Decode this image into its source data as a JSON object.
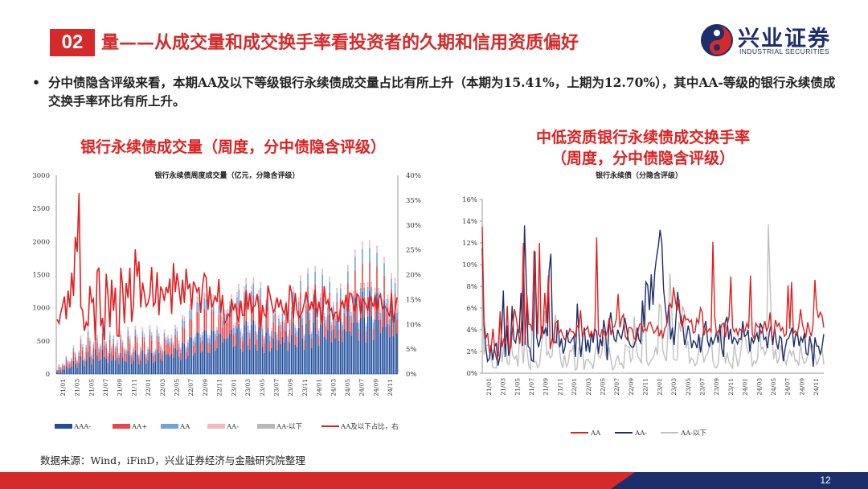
{
  "header": {
    "section_number": "02",
    "title": "量——从成交量和成交换手率看投资者的久期和信用资质偏好",
    "logo_cn": "兴业证券",
    "logo_en": "INDUSTRIAL SECURITIES",
    "brand_color": "#d42a2a",
    "logo_color": "#1c2e6c"
  },
  "bullet": {
    "marker": "•",
    "text": "分中债隐含评级来看，本期AA及以下等级银行永续债成交量占比有所上升（本期为15.41%，上期为12.70%），其中AA-等级的银行永续债成交换手率环比有所上升。"
  },
  "left_heading": "银行永续债成交量（周度，分中债隐含评级）",
  "right_heading_line1": "中低资质银行永续债成交换手率",
  "right_heading_line2": "（周度，分中债隐含评级）",
  "source": "数据来源：Wind，iFinD，兴业证券经济与金融研究院整理",
  "page_number": "12",
  "chart_data": [
    {
      "type": "bar",
      "stacked": true,
      "title": "银行永续债周度成交量（亿元，分隐含评级）",
      "x_ticks": [
        "21/01",
        "21/03",
        "21/05",
        "21/07",
        "21/09",
        "21/11",
        "22/01",
        "22/03",
        "22/05",
        "22/07",
        "22/09",
        "22/11",
        "23/01",
        "23/03",
        "23/05",
        "23/07",
        "23/09",
        "23/11",
        "24/01",
        "24/03",
        "24/05",
        "24/07",
        "24/09",
        "24/11"
      ],
      "ylim_left": [
        0,
        3000
      ],
      "yticks_left": [
        0,
        500,
        1000,
        1500,
        2000,
        2500,
        3000
      ],
      "ylim_right": [
        0,
        40
      ],
      "yticks_right": [
        "0%",
        "5%",
        "10%",
        "15%",
        "20%",
        "25%",
        "30%",
        "35%",
        "40%"
      ],
      "legend": [
        "AAA-",
        "AA+",
        "AA",
        "AA-",
        "AA-以下",
        "AA及以下占比，右"
      ],
      "series": [
        {
          "name": "AAA-",
          "color": "#1f4e9c",
          "stack_values_approx": {
            "21/01": 50,
            "21/07": 300,
            "22/01": 250,
            "22/07": 400,
            "23/01": 650,
            "23/07": 550,
            "24/01": 700,
            "24/07": 850,
            "24/11": 900
          }
        },
        {
          "name": "AA+",
          "color": "#e8474a",
          "stack_values_approx": {
            "21/01": 40,
            "21/07": 200,
            "22/01": 150,
            "22/07": 200,
            "23/01": 300,
            "23/07": 250,
            "24/01": 250,
            "24/07": 300,
            "24/11": 300
          }
        },
        {
          "name": "AA",
          "color": "#6ea2e0",
          "stack_values_approx": {
            "21/01": 20,
            "21/07": 80,
            "22/01": 60,
            "22/07": 100,
            "23/01": 150,
            "23/07": 120,
            "24/01": 130,
            "24/07": 150,
            "24/11": 150
          }
        },
        {
          "name": "AA-",
          "color": "#f5b8c0",
          "stack_values_approx": {
            "21/01": 10,
            "21/07": 40,
            "22/01": 30,
            "22/07": 50,
            "23/01": 60,
            "23/07": 50,
            "24/01": 50,
            "24/07": 60,
            "24/11": 60
          }
        },
        {
          "name": "AA-以下",
          "color": "#b8b8b8",
          "stack_values_approx": {
            "21/01": 5,
            "21/07": 10,
            "22/01": 10,
            "22/07": 10,
            "23/01": 15,
            "23/07": 10,
            "24/01": 10,
            "24/07": 15,
            "24/11": 15
          }
        },
        {
          "name": "AA及以下占比，右",
          "color": "#e02020",
          "type": "line",
          "axis": "right",
          "values_pct": [
            11.0,
            10.2,
            12.4,
            13.8,
            15.6,
            11.0,
            16.8,
            13.4,
            20.4,
            15.7,
            27.6,
            24.6,
            36.4,
            13.5,
            12.8,
            8.7,
            10.4,
            9.6,
            17.7,
            14.5,
            15.1,
            6.7,
            20.7,
            21.4,
            9.6,
            11.3,
            6.8,
            20.2,
            15.9,
            9.4,
            19.0,
            12.7,
            17.4,
            7.7,
            7.6,
            21.4,
            17.7,
            10.2,
            18.3,
            15.3,
            21.4,
            10.5,
            13.9,
            25.1,
            19.6,
            22.7,
            13.4,
            18.4,
            16.2,
            13.6,
            14.3,
            15.9,
            21.5,
            13.7,
            14.4,
            20.5,
            11.8,
            17.6,
            16.7,
            14.7,
            17.5,
            16.3,
            19.2,
            12.1,
            22.3,
            16.5,
            20.3,
            17.4,
            14.0,
            19.0,
            14.3,
            21.2,
            17.1,
            18.2,
            12.9,
            18.6,
            17.8,
            16.5,
            17.5,
            12.3,
            17.7,
            20.2,
            19.4,
            12.9,
            17.6,
            13.4,
            14.3,
            15.6,
            14.5,
            19.1,
            12.2,
            15.9,
            10.2,
            10.7,
            12.1,
            11.6,
            15.1,
            12.8,
            14.2,
            11.8,
            10.5,
            14.8,
            11.8,
            11.8,
            16.9,
            12.9,
            16.3,
            12.2,
            13.7,
            13.7,
            16.1,
            13.3,
            8.8,
            13.9,
            12.0,
            11.5,
            17.8,
            16.2,
            14.3,
            12.4,
            13.3,
            15.4,
            13.4,
            15.0,
            13.0,
            12.1,
            14.3,
            10.2,
            17.9,
            16.4,
            11.1,
            16.3,
            12.8,
            11.3,
            11.9,
            12.6,
            14.3,
            16.5,
            14.6,
            12.8,
            14.6,
            13.0,
            17.0,
            11.4,
            14.6,
            12.3,
            10.2,
            17.7,
            14.0,
            14.9,
            12.7,
            13.2,
            10.8,
            12.4,
            12.4,
            10.4,
            13.6,
            14.6,
            13.1,
            16.0,
            12.3,
            16.3,
            16.1,
            13.9,
            12.5,
            16.1,
            15.7,
            12.1,
            15.3,
            14.6,
            14.0,
            12.7,
            15.9,
            14.6,
            13.5,
            15.9,
            12.8,
            15.2,
            16.0,
            13.0,
            13.8,
            13.3,
            12.5,
            11.6,
            16.3,
            10.2,
            12.7,
            15.4
          ]
        }
      ]
    },
    {
      "type": "line",
      "title": "银行永续债（分隐含评级）",
      "x_ticks": [
        "21/01",
        "21/03",
        "21/05",
        "21/07",
        "21/09",
        "21/11",
        "22/01",
        "22/03",
        "22/05",
        "22/07",
        "22/09",
        "22/11",
        "23/01",
        "23/03",
        "23/05",
        "23/07",
        "23/09",
        "23/11",
        "24/01",
        "24/03",
        "24/05",
        "24/07",
        "24/09",
        "24/11"
      ],
      "ylim": [
        0,
        16
      ],
      "yticks": [
        "0%",
        "2%",
        "4%",
        "6%",
        "8%",
        "10%",
        "12%",
        "14%",
        "16%"
      ],
      "legend": [
        "AA",
        "AA-",
        "AA-以下"
      ],
      "series": [
        {
          "name": "AA",
          "color": "#e02020",
          "values": [
            13.5,
            4.8,
            3.2,
            3.7,
            2.0,
            2.3,
            4.1,
            2.1,
            1.3,
            1.6,
            5.7,
            2.4,
            3.1,
            2.7,
            6.2,
            2.0,
            2.4,
            4.2,
            5.9,
            5.1,
            4.0,
            2.7,
            4.7,
            12.0,
            2.6,
            7.2,
            4.5,
            4.5,
            3.9,
            11.3,
            7.6,
            3.6,
            12.0,
            3.2,
            4.3,
            7.4,
            4.6,
            9.0,
            2.2,
            3.1,
            2.8,
            4.6,
            4.8,
            3.7,
            4.0,
            3.5,
            3.1,
            3.3,
            3.5,
            4.1,
            3.8,
            3.8,
            3.4,
            4.4,
            4.1,
            5.8,
            3.3,
            3.9,
            4.0,
            4.3,
            3.4,
            3.8,
            3.4,
            4.2,
            12.5,
            3.6,
            3.3,
            4.0,
            3.9,
            3.3,
            3.9,
            5.1,
            3.5,
            4.2,
            4.3,
            5.0,
            7.3,
            4.2,
            5.1,
            5.4,
            3.4,
            3.1,
            4.2,
            4.2,
            4.0,
            3.2,
            3.0,
            3.8,
            4.5,
            4.6,
            3.8,
            4.1,
            3.9,
            4.6,
            4.7,
            4.2,
            3.7,
            3.9,
            4.3,
            3.4,
            4.0,
            3.2,
            4.1,
            4.4,
            5.6,
            6.4,
            6.0,
            7.9,
            6.7,
            5.8,
            6.8,
            4.6,
            4.3,
            5.4,
            4.9,
            5.0,
            4.7,
            4.9,
            3.7,
            3.8,
            5.0,
            4.6,
            6.0,
            5.6,
            3.5,
            4.2,
            3.8,
            4.1,
            3.8,
            12.1,
            5.2,
            3.6,
            3.9,
            4.0,
            4.5,
            4.6,
            3.3,
            4.4,
            5.2,
            8.9,
            4.2,
            3.8,
            4.1,
            3.5,
            4.1,
            3.9,
            3.8,
            3.9,
            4.6,
            4.1,
            9.0,
            3.6,
            3.2,
            4.6,
            4.3,
            4.2,
            3.7,
            4.1,
            4.8,
            3.9,
            4.2,
            5.6,
            3.2,
            3.5,
            4.9,
            4.3,
            4.6,
            3.9,
            4.2,
            3.4,
            3.6,
            8.1,
            4.1,
            8.4,
            3.7,
            3.9,
            3.5,
            4.3,
            5.9,
            4.5,
            3.9,
            3.3,
            4.7,
            3.9,
            3.4,
            4.4,
            8.6,
            6.0,
            5.1,
            5.6,
            5.3,
            4.2
          ]
        },
        {
          "name": "AA-",
          "color": "#1c2e6c",
          "values": [
            11.5,
            4.5,
            2.4,
            1.1,
            1.3,
            2.6,
            1.2,
            2.4,
            2.8,
            0.7,
            1.5,
            3.8,
            7.6,
            1.5,
            4.4,
            1.6,
            2.4,
            6.2,
            3.1,
            2.8,
            4.0,
            3.8,
            7.4,
            2.5,
            13.6,
            8.5,
            2.5,
            2.3,
            1.2,
            1.1,
            11.2,
            3.3,
            2.4,
            3.1,
            4.3,
            3.6,
            4.2,
            3.4,
            9.4,
            11.0,
            3.0,
            2.9,
            2.8,
            4.9,
            2.4,
            3.2,
            1.8,
            2.4,
            4.0,
            2.9,
            2.8,
            3.1,
            3.4,
            1.5,
            6.4,
            3.5,
            1.5,
            3.2,
            4.2,
            2.0,
            3.1,
            1.9,
            3.9,
            2.8,
            4.1,
            3.8,
            1.8,
            3.2,
            2.5,
            4.9,
            3.8,
            1.2,
            4.4,
            5.6,
            4.2,
            3.1,
            2.9,
            4.0,
            3.5,
            3.2,
            4.0,
            5.1,
            4.2,
            3.1,
            2.6,
            2.4,
            2.4,
            3.0,
            4.2,
            3.1,
            2.8,
            6.7,
            4.2,
            8.4,
            8.1,
            5.8,
            9.1,
            6.3,
            9.3,
            10.7,
            11.7,
            13.2,
            12.0,
            7.8,
            6.1,
            4.6,
            6.3,
            3.1,
            4.2,
            2.6,
            5.0,
            7.5,
            5.7,
            5.1,
            4.3,
            2.6,
            3.3,
            4.4,
            3.6,
            2.3,
            3.0,
            2.8,
            2.3,
            3.6,
            1.9,
            3.0,
            4.2,
            4.8,
            3.0,
            2.4,
            3.3,
            2.7,
            3.1,
            3.8,
            2.8,
            4.5,
            2.3,
            1.5,
            4.7,
            5.2,
            3.1,
            4.1,
            2.7,
            3.3,
            3.1,
            2.7,
            3.2,
            3.1,
            4.8,
            3.4,
            3.5,
            4.0,
            2.0,
            3.3,
            2.8,
            3.2,
            3.7,
            2.9,
            4.6,
            4.2,
            3.1,
            3.3,
            2.3,
            3.7,
            4.4,
            2.6,
            4.2,
            2.9,
            2.2,
            3.4,
            3.2,
            1.1,
            2.2,
            3.1,
            3.2,
            3.7,
            4.2,
            2.4,
            3.6,
            3.8,
            2.5,
            3.3,
            2.9,
            3.7,
            1.8,
            1.7,
            3.4,
            2.6,
            0.6,
            3.3,
            2.5,
            2.5,
            1.7,
            2.4,
            3.6
          ]
        },
        {
          "name": "AA-以下",
          "color": "#c0c0c0",
          "values": [
            11.5,
            1.7,
            2.5,
            2.6,
            2.6,
            1.5,
            0.5,
            0.5,
            0.5,
            3.5,
            5.5,
            1.0,
            2.4,
            3.6,
            0.9,
            0.8,
            3.2,
            1.7,
            1.3,
            1.6,
            0.6,
            3.8,
            2.8,
            0.9,
            3.9,
            2.2,
            0.7,
            0.3,
            5.7,
            1.0,
            1.1,
            0.5,
            0.8,
            2.3,
            3.6,
            5.7,
            1.6,
            2.0,
            1.4,
            1.6,
            3.7,
            5.4,
            2.8,
            2.5,
            1.1,
            0.5,
            1.7,
            0.6,
            0.9,
            2.1,
            2.0,
            2.6,
            0.3,
            0.4,
            2.4,
            2.0,
            2.4,
            0.3,
            1.2,
            1.3,
            1.0,
            0.9,
            0.4,
            1.7,
            2.7,
            1.6,
            1.4,
            2.1,
            3.3,
            1.7,
            1.2,
            2.4,
            1.2,
            0.3,
            0.6,
            1.3,
            1.6,
            0.8,
            0.9,
            0.4,
            2.6,
            2.5,
            2.4,
            1.1,
            1.4,
            5.2,
            2.6,
            1.5,
            1.3,
            0.9,
            6.1,
            6.2,
            1.1,
            0.7,
            1.1,
            1.3,
            1.6,
            2.4,
            1.7,
            6.4,
            6.0,
            2.1,
            1.5,
            1.1,
            4.4,
            9.2,
            5.7,
            1.3,
            1.2,
            1.2,
            4.7,
            3.8,
            6.2,
            5.7,
            2.3,
            3.0,
            0.9,
            1.4,
            1.2,
            0.7,
            0.9,
            2.0,
            3.3,
            2.1,
            1.0,
            1.6,
            1.8,
            2.5,
            3.6,
            1.1,
            0.6,
            0.5,
            0.9,
            3.1,
            4.4,
            2.5,
            0.9,
            1.9,
            1.0,
            0.8,
            0.4,
            2.8,
            1.5,
            0.6,
            1.4,
            2.5,
            4.0,
            3.4,
            2.4,
            1.8,
            2.5,
            0.6,
            1.1,
            0.9,
            1.4,
            4.6,
            2.2,
            2.4,
            1.7,
            2.1,
            13.7,
            8.3,
            3.3,
            1.3,
            2.2,
            0.9,
            1.4,
            2.6,
            1.6,
            1.3,
            0.8,
            1.6,
            2.1,
            1.6,
            2.1,
            1.1,
            1.2,
            0.7,
            2.7,
            1.5,
            0.9,
            1.0,
            1.7,
            2.8,
            2.2,
            2.6,
            1.7,
            0.8,
            1.1,
            1.7,
            2.3,
            0.8
          ]
        }
      ]
    }
  ]
}
